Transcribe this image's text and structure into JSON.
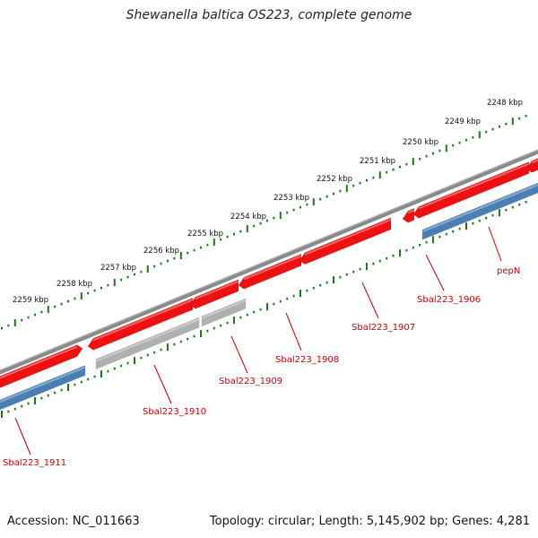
{
  "title": "Shewanella baltica OS223, complete genome",
  "footer": {
    "accession": "Accession: NC_011663",
    "summary": "Topology: circular; Length: 5,145,902 bp; Genes: 4,281"
  },
  "colors": {
    "cds_forward": "#ee1111",
    "cds_reverse": "#4a7fb5",
    "pseudo": "#b0b0b0",
    "backbone": "#7a7a7a",
    "ticks": "#1a7a1a",
    "label": "#cc0000"
  },
  "scale_labels": [
    "2248 kbp",
    "2249 kbp",
    "2250 kbp",
    "2251 kbp",
    "2252 kbp",
    "2253 kbp",
    "2254 kbp",
    "2255 kbp",
    "2256 kbp",
    "2257 kbp",
    "2258 kbp",
    "2259 kbp"
  ],
  "gene_labels": [
    "pepN",
    "Sbal223_1906",
    "Sbal223_1907",
    "Sbal223_1908",
    "Sbal223_1909",
    "Sbal223_1910",
    "Sbal223_1911"
  ]
}
